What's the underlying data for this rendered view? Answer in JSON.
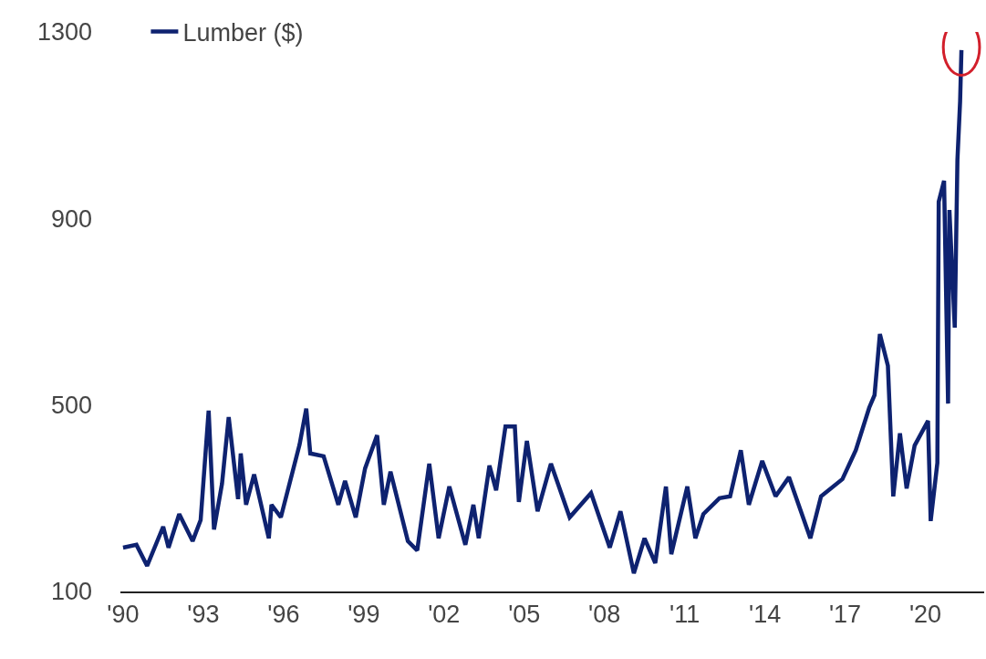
{
  "chart_data": {
    "type": "line",
    "legend": "top left",
    "grid": false,
    "line_style": "solid",
    "marker": "none",
    "xlim": [
      1989.9,
      2022.2
    ],
    "xticks": [
      {
        "value": 1990,
        "label": "'90"
      },
      {
        "value": 1993,
        "label": "'93"
      },
      {
        "value": 1996,
        "label": "'96"
      },
      {
        "value": 1999,
        "label": "'99"
      },
      {
        "value": 2002,
        "label": "'02"
      },
      {
        "value": 2005,
        "label": "'05"
      },
      {
        "value": 2008,
        "label": "'08"
      },
      {
        "value": 2011,
        "label": "'11"
      },
      {
        "value": 2014,
        "label": "'14"
      },
      {
        "value": 2017,
        "label": "'17"
      },
      {
        "value": 2020,
        "label": "'20"
      }
    ],
    "ylim": [
      100,
      1300
    ],
    "yticks": [
      100,
      500,
      900,
      1300
    ],
    "x": [
      1990.0,
      1990.5,
      1990.9,
      1991.5,
      1991.7,
      1992.1,
      1992.6,
      1992.9,
      1993.2,
      1993.4,
      1993.7,
      1993.95,
      1994.3,
      1994.4,
      1994.6,
      1994.9,
      1995.45,
      1995.55,
      1995.9,
      1996.6,
      1996.85,
      1997.0,
      1997.5,
      1998.05,
      1998.3,
      1998.7,
      1999.05,
      1999.5,
      1999.75,
      2000.0,
      2000.65,
      2001.0,
      2001.45,
      2001.8,
      2002.2,
      2002.8,
      2003.1,
      2003.3,
      2003.7,
      2003.95,
      2004.3,
      2004.65,
      2004.8,
      2005.1,
      2005.5,
      2006.0,
      2006.7,
      2007.5,
      2008.2,
      2008.6,
      2009.1,
      2009.5,
      2009.9,
      2010.3,
      2010.5,
      2011.1,
      2011.4,
      2011.7,
      2012.3,
      2012.7,
      2013.1,
      2013.4,
      2013.9,
      2014.4,
      2014.9,
      2015.7,
      2016.1,
      2016.9,
      2017.4,
      2017.9,
      2018.1,
      2018.3,
      2018.6,
      2018.8,
      2019.05,
      2019.3,
      2019.6,
      2020.1,
      2020.2,
      2020.45,
      2020.5,
      2020.7,
      2020.85,
      2020.9,
      2021.1,
      2021.2,
      2021.3,
      2021.35
    ],
    "series": [
      {
        "name": "Lumber ($)",
        "color": "#0e2270",
        "values": [
          194,
          200,
          155,
          239,
          194,
          266,
          208,
          253,
          488,
          233,
          331,
          474,
          298,
          396,
          286,
          351,
          214,
          286,
          259,
          415,
          492,
          396,
          390,
          286,
          337,
          259,
          364,
          435,
          286,
          357,
          208,
          188,
          374,
          214,
          325,
          200,
          286,
          214,
          370,
          317,
          454,
          454,
          292,
          423,
          272,
          374,
          259,
          311,
          194,
          272,
          139,
          214,
          161,
          325,
          180,
          325,
          214,
          266,
          300,
          304,
          403,
          286,
          380,
          304,
          345,
          214,
          304,
          341,
          403,
          494,
          521,
          652,
          584,
          304,
          439,
          321,
          413,
          466,
          251,
          376,
          936,
          981,
          503,
          918,
          666,
          1026,
          1151,
          1261
        ]
      }
    ]
  }
}
